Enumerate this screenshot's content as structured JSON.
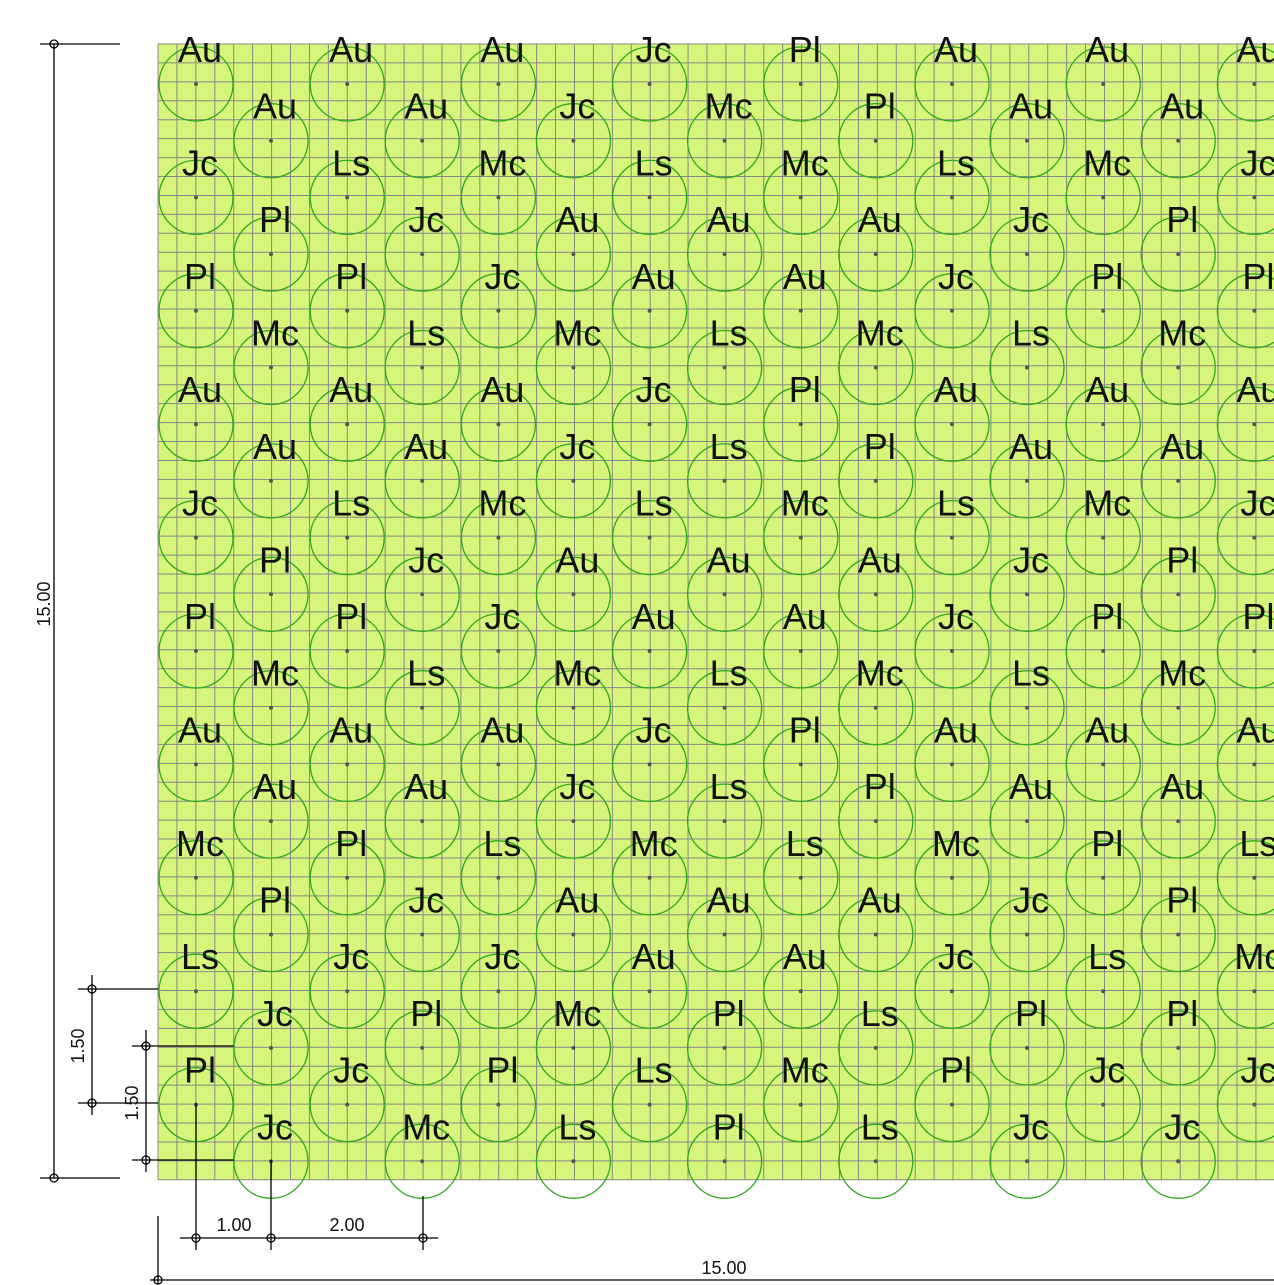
{
  "colors": {
    "bed_fill": "#d6f57a",
    "grid_line": "#888888",
    "canopy_stroke": "#2ea81f",
    "dimension_line": "#000000",
    "label_text": "#111111"
  },
  "planting_rows": [
    [
      "Au",
      "Au",
      "Au",
      "Jc",
      "Pl",
      "Au",
      "Au",
      "Au"
    ],
    [
      "Au",
      "Au",
      "Jc",
      "Mc",
      "Pl",
      "Au",
      "Au"
    ],
    [
      "Jc",
      "Ls",
      "Mc",
      "Ls",
      "Mc",
      "Ls",
      "Mc",
      "Jc"
    ],
    [
      "Pl",
      "Jc",
      "Au",
      "Au",
      "Au",
      "Jc",
      "Pl"
    ],
    [
      "Pl",
      "Pl",
      "Jc",
      "Au",
      "Au",
      "Jc",
      "Pl",
      "Pl"
    ],
    [
      "Mc",
      "Ls",
      "Mc",
      "Ls",
      "Mc",
      "Ls",
      "Mc"
    ],
    [
      "Au",
      "Au",
      "Au",
      "Jc",
      "Pl",
      "Au",
      "Au",
      "Au"
    ],
    [
      "Au",
      "Au",
      "Jc",
      "Ls",
      "Pl",
      "Au",
      "Au"
    ],
    [
      "Jc",
      "Ls",
      "Mc",
      "Ls",
      "Mc",
      "Ls",
      "Mc",
      "Jc"
    ],
    [
      "Pl",
      "Jc",
      "Au",
      "Au",
      "Au",
      "Jc",
      "Pl"
    ],
    [
      "Pl",
      "Pl",
      "Jc",
      "Au",
      "Au",
      "Jc",
      "Pl",
      "Pl"
    ],
    [
      "Mc",
      "Ls",
      "Mc",
      "Ls",
      "Mc",
      "Ls",
      "Mc"
    ],
    [
      "Au",
      "Au",
      "Au",
      "Jc",
      "Pl",
      "Au",
      "Au",
      "Au"
    ],
    [
      "Au",
      "Au",
      "Jc",
      "Ls",
      "Pl",
      "Au",
      "Au"
    ],
    [
      "Mc",
      "Pl",
      "Ls",
      "Mc",
      "Ls",
      "Mc",
      "Pl",
      "Ls"
    ],
    [
      "Pl",
      "Jc",
      "Au",
      "Au",
      "Au",
      "Jc",
      "Pl"
    ],
    [
      "Ls",
      "Jc",
      "Jc",
      "Au",
      "Au",
      "Jc",
      "Ls",
      "Mc"
    ],
    [
      "Jc",
      "Pl",
      "Mc",
      "Pl",
      "Ls",
      "Pl",
      "Pl"
    ],
    [
      "Pl",
      "Jc",
      "Pl",
      "Ls",
      "Mc",
      "Pl",
      "Jc",
      "Jc"
    ],
    [
      "Jc",
      "Mc",
      "Ls",
      "Pl",
      "Ls",
      "Jc",
      "Jc"
    ]
  ],
  "dimensions": {
    "total_height": "15.00",
    "total_width": "15.00",
    "row_spacing_outer": "1.50",
    "row_spacing_inner": "1.50",
    "offset_spacing": "1.00",
    "plant_spacing": "2.00"
  }
}
